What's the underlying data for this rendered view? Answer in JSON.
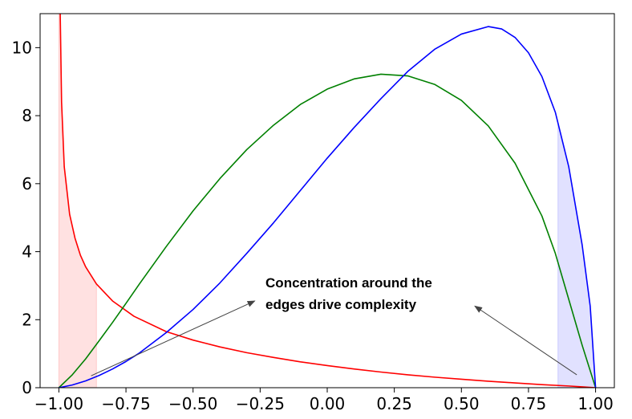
{
  "chart_data": {
    "type": "line",
    "title": "",
    "xlabel": "",
    "ylabel": "",
    "xlim": [
      -1.07,
      1.07
    ],
    "ylim": [
      0,
      11
    ],
    "grid": false,
    "legend": "none",
    "x_ticks": [
      -1.0,
      -0.75,
      -0.5,
      -0.25,
      0.0,
      0.25,
      0.5,
      0.75,
      1.0
    ],
    "x_tick_labels": [
      "−1.00",
      "−0.75",
      "−0.50",
      "−0.25",
      "0.00",
      "0.25",
      "0.50",
      "0.75",
      "1.00"
    ],
    "y_ticks": [
      0,
      2,
      4,
      6,
      8,
      10
    ],
    "y_tick_labels": [
      "0",
      "2",
      "4",
      "6",
      "8",
      "10"
    ],
    "series": [
      {
        "color": "#ff0000",
        "x": [
          -0.995,
          -0.99,
          -0.98,
          -0.96,
          -0.94,
          -0.92,
          -0.9,
          -0.86,
          -0.8,
          -0.72,
          -0.6,
          -0.5,
          -0.4,
          -0.3,
          -0.2,
          -0.1,
          0.0,
          0.1,
          0.2,
          0.3,
          0.4,
          0.5,
          0.6,
          0.7,
          0.8,
          0.9,
          0.95,
          1.0
        ],
        "y": [
          11.0,
          8.4,
          6.5,
          5.1,
          4.4,
          3.9,
          3.55,
          3.05,
          2.55,
          2.1,
          1.65,
          1.4,
          1.2,
          1.03,
          0.89,
          0.76,
          0.65,
          0.55,
          0.46,
          0.38,
          0.31,
          0.25,
          0.19,
          0.14,
          0.09,
          0.05,
          0.025,
          0.0
        ]
      },
      {
        "color": "#008000",
        "x": [
          -1.0,
          -0.95,
          -0.9,
          -0.85,
          -0.8,
          -0.75,
          -0.7,
          -0.6,
          -0.5,
          -0.4,
          -0.3,
          -0.2,
          -0.1,
          0.0,
          0.1,
          0.2,
          0.3,
          0.4,
          0.5,
          0.6,
          0.7,
          0.8,
          0.85,
          0.9,
          0.95,
          1.0
        ],
        "y": [
          0.0,
          0.38,
          0.85,
          1.38,
          1.92,
          2.48,
          3.05,
          4.15,
          5.2,
          6.15,
          7.0,
          7.72,
          8.33,
          8.78,
          9.08,
          9.22,
          9.17,
          8.92,
          8.45,
          7.7,
          6.6,
          5.05,
          3.95,
          2.6,
          1.25,
          0.0
        ]
      },
      {
        "color": "#0000ff",
        "x": [
          -1.0,
          -0.95,
          -0.9,
          -0.85,
          -0.8,
          -0.75,
          -0.7,
          -0.6,
          -0.5,
          -0.4,
          -0.3,
          -0.2,
          -0.1,
          0.0,
          0.1,
          0.2,
          0.3,
          0.4,
          0.5,
          0.6,
          0.65,
          0.7,
          0.75,
          0.8,
          0.85,
          0.9,
          0.95,
          0.98,
          1.0
        ],
        "y": [
          0.0,
          0.08,
          0.2,
          0.36,
          0.55,
          0.77,
          1.02,
          1.62,
          2.3,
          3.08,
          3.95,
          4.85,
          5.8,
          6.75,
          7.65,
          8.5,
          9.3,
          9.95,
          10.4,
          10.62,
          10.55,
          10.3,
          9.85,
          9.15,
          8.1,
          6.5,
          4.2,
          2.4,
          0.0
        ]
      }
    ],
    "shaded_regions": [
      {
        "color": "#ffb3b3",
        "x_from": -1.0,
        "x_to": -0.86,
        "under": "red"
      },
      {
        "color": "#b3b3ff",
        "x_from": 0.86,
        "x_to": 1.0,
        "under": "blue"
      }
    ],
    "annotations": [
      {
        "lines": [
          "Concentration around the",
          "edges drive complexity"
        ],
        "x": -0.23,
        "y": 2.95
      }
    ],
    "annotation_arrows": [
      {
        "from": [
          -0.88,
          0.35
        ],
        "to": [
          -0.27,
          2.55
        ]
      },
      {
        "from": [
          0.93,
          0.38
        ],
        "to": [
          0.55,
          2.4
        ]
      }
    ]
  }
}
